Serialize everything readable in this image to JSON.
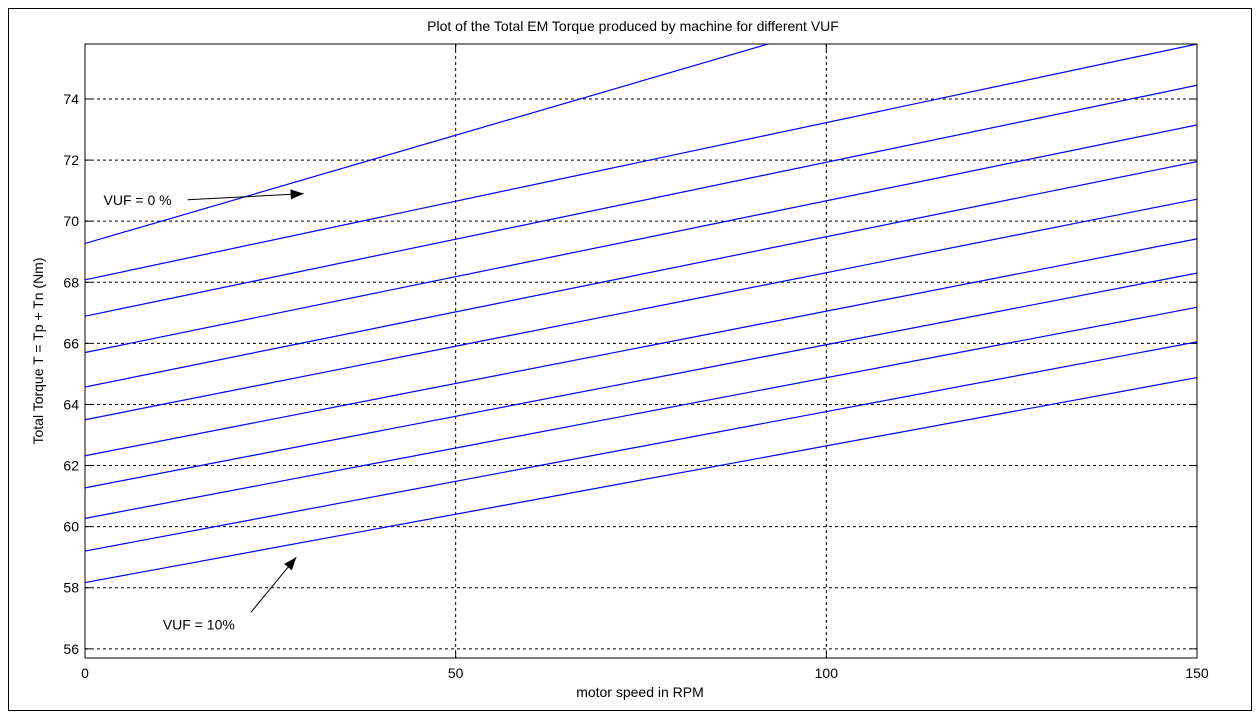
{
  "chart_data": {
    "type": "line",
    "title": "Plot of the Total EM Torque produced by machine for different VUF",
    "xlabel": "motor speed in RPM",
    "ylabel": "Total  Torque  T = Tp + Tn (Nm)",
    "xlim": [
      0,
      150
    ],
    "ylim": [
      55.7,
      75.8
    ],
    "xticks": [
      0,
      50,
      100,
      150
    ],
    "yticks": [
      56,
      58,
      60,
      62,
      64,
      66,
      68,
      70,
      72,
      74
    ],
    "grid": true,
    "line_color": "#0000ff",
    "series": [
      {
        "x": [
          0,
          150
        ],
        "values": [
          69.27,
          79.9
        ]
      },
      {
        "x": [
          0,
          150
        ],
        "values": [
          68.08,
          75.8
        ]
      },
      {
        "x": [
          0,
          150
        ],
        "values": [
          66.89,
          74.45
        ]
      },
      {
        "x": [
          0,
          150
        ],
        "values": [
          65.7,
          73.15
        ]
      },
      {
        "x": [
          0,
          150
        ],
        "values": [
          64.57,
          71.95
        ]
      },
      {
        "x": [
          0,
          150
        ],
        "values": [
          63.5,
          70.72
        ]
      },
      {
        "x": [
          0,
          150
        ],
        "values": [
          62.32,
          69.42
        ]
      },
      {
        "x": [
          0,
          150
        ],
        "values": [
          61.27,
          68.3
        ]
      },
      {
        "x": [
          0,
          150
        ],
        "values": [
          60.27,
          67.18
        ]
      },
      {
        "x": [
          0,
          150
        ],
        "values": [
          59.2,
          66.05
        ]
      },
      {
        "x": [
          0,
          150
        ],
        "values": [
          58.17,
          64.88
        ]
      }
    ],
    "annotations": [
      {
        "text": "VUF = 0 %",
        "x": 2.5,
        "y": 70.7,
        "arrow_to": [
          29.5,
          70.9
        ]
      },
      {
        "text": "VUF = 10%",
        "x": 10.5,
        "y": 56.8,
        "arrow_to": [
          28.5,
          59.0
        ]
      }
    ]
  }
}
